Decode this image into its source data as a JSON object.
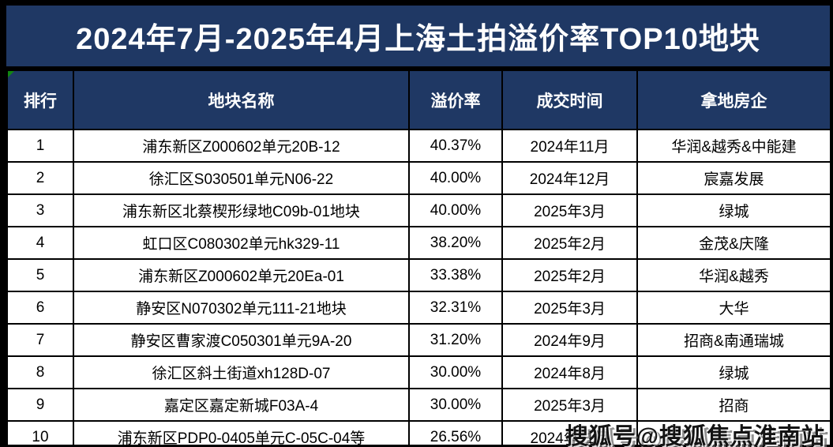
{
  "chart_data": {
    "type": "table",
    "title": "2024年7月-2025年4月上海土拍溢价率TOP10地块",
    "columns": [
      "排行",
      "地块名称",
      "溢价率",
      "成交时间",
      "拿地房企"
    ],
    "rows": [
      [
        "1",
        "浦东新区Z000602单元20B-12",
        "40.37%",
        "2024年11月",
        "华润&越秀&中能建"
      ],
      [
        "2",
        "徐汇区S030501单元N06-22",
        "40.00%",
        "2024年12月",
        "宸嘉发展"
      ],
      [
        "3",
        "浦东新区北蔡楔形绿地C09b-01地块",
        "40.00%",
        "2025年3月",
        "绿城"
      ],
      [
        "4",
        "虹口区C080302单元hk329-11",
        "38.20%",
        "2025年2月",
        "金茂&庆隆"
      ],
      [
        "5",
        "浦东新区Z000602单元20Ea-01",
        "33.38%",
        "2025年2月",
        "华润&越秀"
      ],
      [
        "6",
        "静安区N070302单元111-21地块",
        "32.31%",
        "2025年3月",
        "大华"
      ],
      [
        "7",
        "静安区曹家渡C050301单元9A-20",
        "31.20%",
        "2024年9月",
        "招商&南通瑞城"
      ],
      [
        "8",
        "徐汇区斜土街道xh128D-07",
        "30.00%",
        "2024年8月",
        "绿城"
      ],
      [
        "9",
        "嘉定区嘉定新城F03A-4",
        "30.00%",
        "2025年3月",
        "招商"
      ],
      [
        "10",
        "浦东新区PDP0-0405单元C-05C-04等",
        "26.56%",
        "2024年11月",
        ""
      ]
    ],
    "layout": {
      "header_background": "#1f3864",
      "header_text_color": "#ffffff",
      "body_background": "#ffffff",
      "grid": "on"
    }
  },
  "watermark": {
    "text": "搜狐号@搜狐焦点淮南站"
  },
  "colors": {
    "navy": "#1f3864",
    "border_black": "#000000",
    "row_white": "#ffffff",
    "corner_marker_green": "#128712"
  }
}
